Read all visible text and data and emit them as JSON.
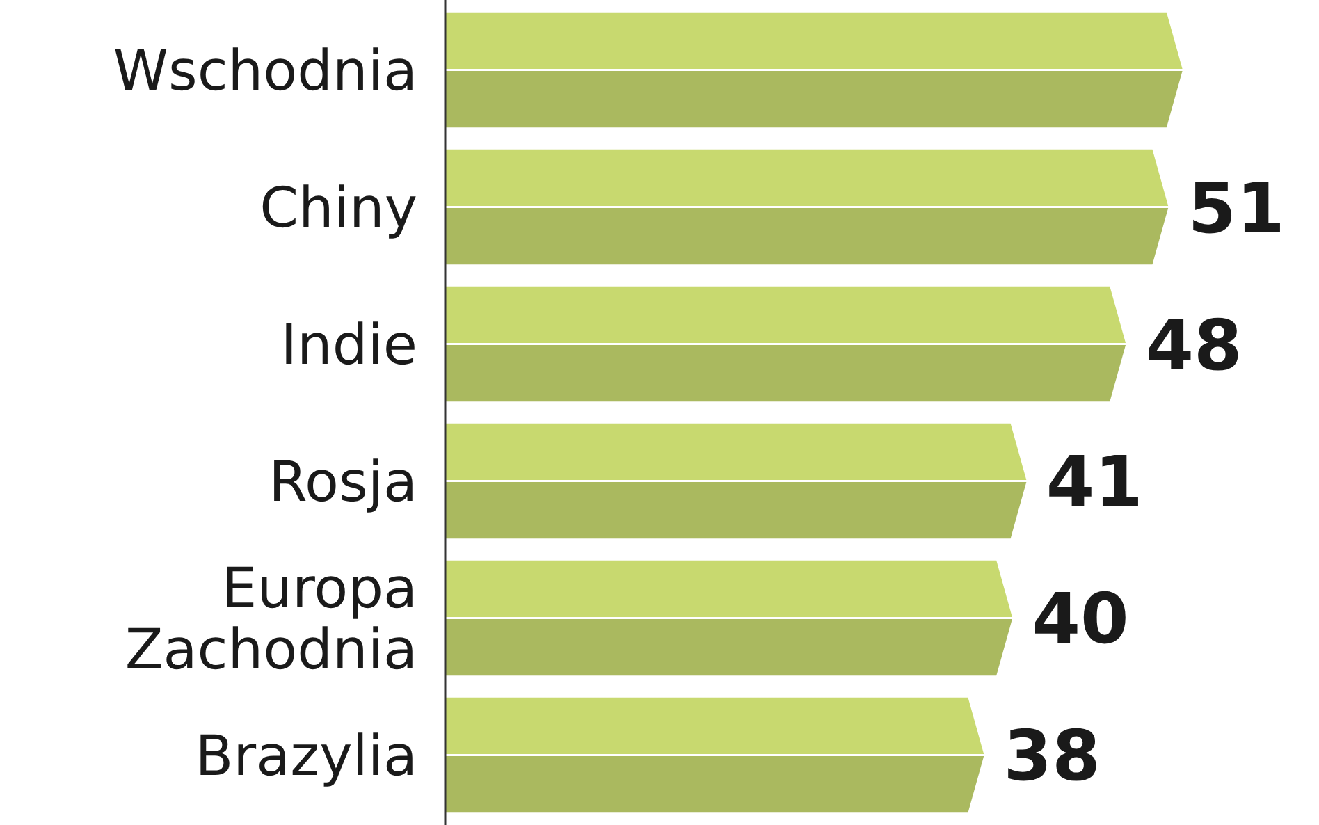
{
  "chart_data": {
    "type": "bar",
    "orientation": "horizontal",
    "categories": [
      "Wschodnia",
      "Chiny",
      "Indie",
      "Rosja",
      "Europa Zachodnia",
      "Brazylia"
    ],
    "values": [
      52,
      51,
      48,
      41,
      40,
      38
    ],
    "value_labels": [
      null,
      "51",
      "48",
      "41",
      "40",
      "38"
    ],
    "colors": [
      "#c8d96f",
      "#c8d96f",
      "#c8d96f",
      "#c8d96f",
      "#c8d96f",
      "#c8d96f"
    ],
    "tick_labels": "y"
  }
}
